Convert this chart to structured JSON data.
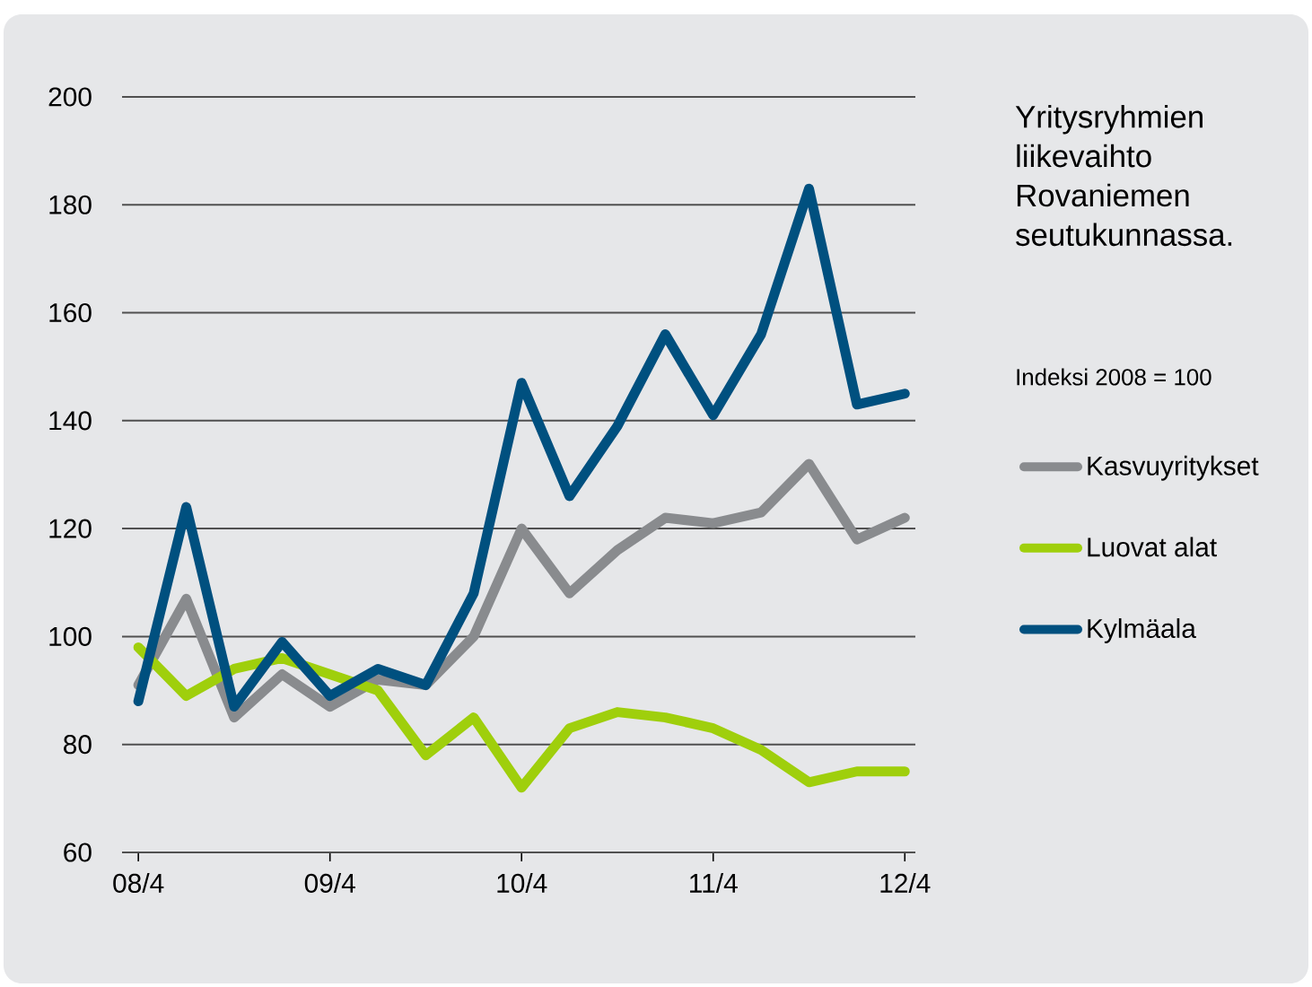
{
  "chart_data": {
    "type": "line",
    "title": "Yritysryhmien liikevaihto Rovaniemen seutukunnassa.",
    "subtitle": "Indeksi 2008 = 100",
    "categories": [
      "08/4",
      null,
      null,
      null,
      "09/4",
      null,
      null,
      null,
      "10/4",
      null,
      null,
      null,
      "11/4",
      null,
      null,
      null,
      "12/4"
    ],
    "series": [
      {
        "name": "Kasvuyritykset",
        "color": "#898b8e",
        "values": [
          91,
          107,
          85,
          93,
          87,
          92,
          91,
          100,
          120,
          108,
          116,
          122,
          121,
          123,
          132,
          118,
          122
        ]
      },
      {
        "name": "Luovat alat",
        "color": "#9fcf0c",
        "values": [
          98,
          89,
          94,
          96,
          93,
          90,
          78,
          85,
          72,
          83,
          86,
          85,
          83,
          79,
          73,
          75,
          75
        ]
      },
      {
        "name": "Kylmäala",
        "color": "#00507f",
        "values": [
          88,
          124,
          87,
          99,
          89,
          94,
          91,
          108,
          147,
          126,
          139,
          156,
          141,
          156,
          183,
          143,
          145
        ]
      }
    ],
    "ylim": [
      60,
      200
    ],
    "yticks": [
      60,
      80,
      100,
      120,
      140,
      160,
      180,
      200
    ],
    "grid": "y",
    "legend": "right",
    "line_style": "solid"
  }
}
